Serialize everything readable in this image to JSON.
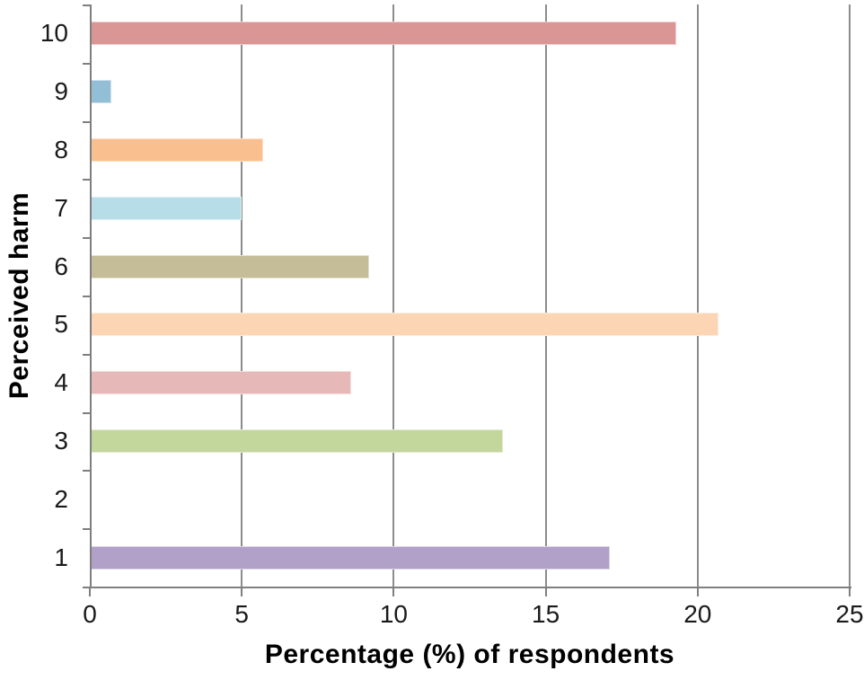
{
  "chart_data": {
    "type": "bar",
    "orientation": "horizontal",
    "xlabel": "Percentage (%) of respondents",
    "ylabel": "Perceived harm",
    "xlim": [
      0,
      25
    ],
    "xticks": [
      0,
      5,
      10,
      15,
      20,
      25
    ],
    "grid": "vertical gridlines at x ticks, drawn behind bars",
    "legend": "none",
    "categories": [
      "10",
      "9",
      "8",
      "7",
      "6",
      "5",
      "4",
      "3",
      "2",
      "1"
    ],
    "values": [
      19.3,
      0.7,
      5.7,
      5.0,
      9.2,
      20.7,
      8.6,
      13.6,
      0,
      17.1
    ],
    "bar_colors": [
      "#D99694",
      "#92BFD6",
      "#FABF8F",
      "#B7DDE8",
      "#C4BD97",
      "#FCD5B4",
      "#E6B8B7",
      "#C3D69B",
      "none",
      "#B1A0C7"
    ],
    "colors": {
      "gridline": "#8C8C8C",
      "axis": "#7F7F7F",
      "text": "#1A1A1A"
    }
  }
}
